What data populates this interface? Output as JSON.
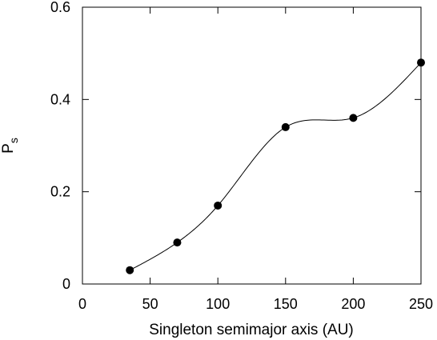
{
  "chart_data": {
    "type": "line",
    "title": "",
    "xlabel": "Singleton semimajor axis (AU)",
    "ylabel": "P",
    "ylabel_subscript": "s",
    "xlim": [
      0,
      250
    ],
    "ylim": [
      0,
      0.6
    ],
    "xticks": [
      0,
      50,
      100,
      150,
      200,
      250
    ],
    "xtick_labels": [
      "0",
      "50",
      "100",
      "150",
      "200",
      "250"
    ],
    "yticks": [
      0,
      0.2,
      0.4,
      0.6
    ],
    "ytick_labels": [
      "0",
      "0.2",
      "0.4",
      "0.6"
    ],
    "grid": false,
    "legend": "none",
    "series": [
      {
        "x": [
          35,
          70,
          100,
          150,
          200,
          250
        ],
        "y": [
          0.03,
          0.09,
          0.17,
          0.34,
          0.36,
          0.48
        ],
        "marker": "filled-circle",
        "line": "smooth-spline",
        "color": "#000000"
      }
    ]
  }
}
